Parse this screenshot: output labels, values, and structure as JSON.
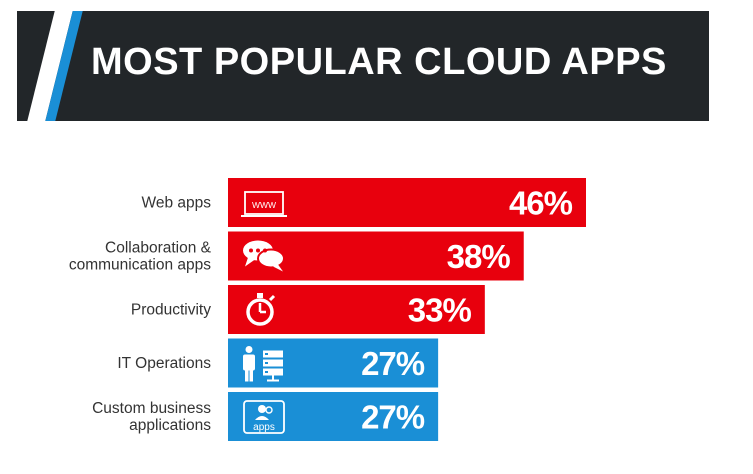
{
  "header": {
    "title": "MOST POPULAR CLOUD APPS"
  },
  "colors": {
    "high": "#e8000d",
    "low": "#1a8fd6",
    "header_bg": "#222629"
  },
  "chart_data": {
    "type": "bar",
    "orientation": "horizontal",
    "title": "MOST POPULAR CLOUD APPS",
    "xlim": [
      0,
      46
    ],
    "categories": [
      {
        "lines": [
          "Web apps"
        ],
        "value": 46,
        "label": "46%",
        "icon": "web-browser-icon",
        "color": "#e8000d"
      },
      {
        "lines": [
          "Collaboration &",
          "communication apps"
        ],
        "value": 38,
        "label": "38%",
        "icon": "chat-bubbles-icon",
        "color": "#e8000d"
      },
      {
        "lines": [
          "Productivity"
        ],
        "value": 33,
        "label": "33%",
        "icon": "stopwatch-icon",
        "color": "#e8000d"
      },
      {
        "lines": [
          "IT Operations"
        ],
        "value": 27,
        "label": "27%",
        "icon": "person-server-icon",
        "color": "#1a8fd6"
      },
      {
        "lines": [
          "Custom business",
          "applications"
        ],
        "value": 27,
        "label": "27%",
        "icon": "custom-apps-icon",
        "color": "#1a8fd6",
        "icon_text": "apps"
      }
    ],
    "web_icon_text": "WWW"
  }
}
